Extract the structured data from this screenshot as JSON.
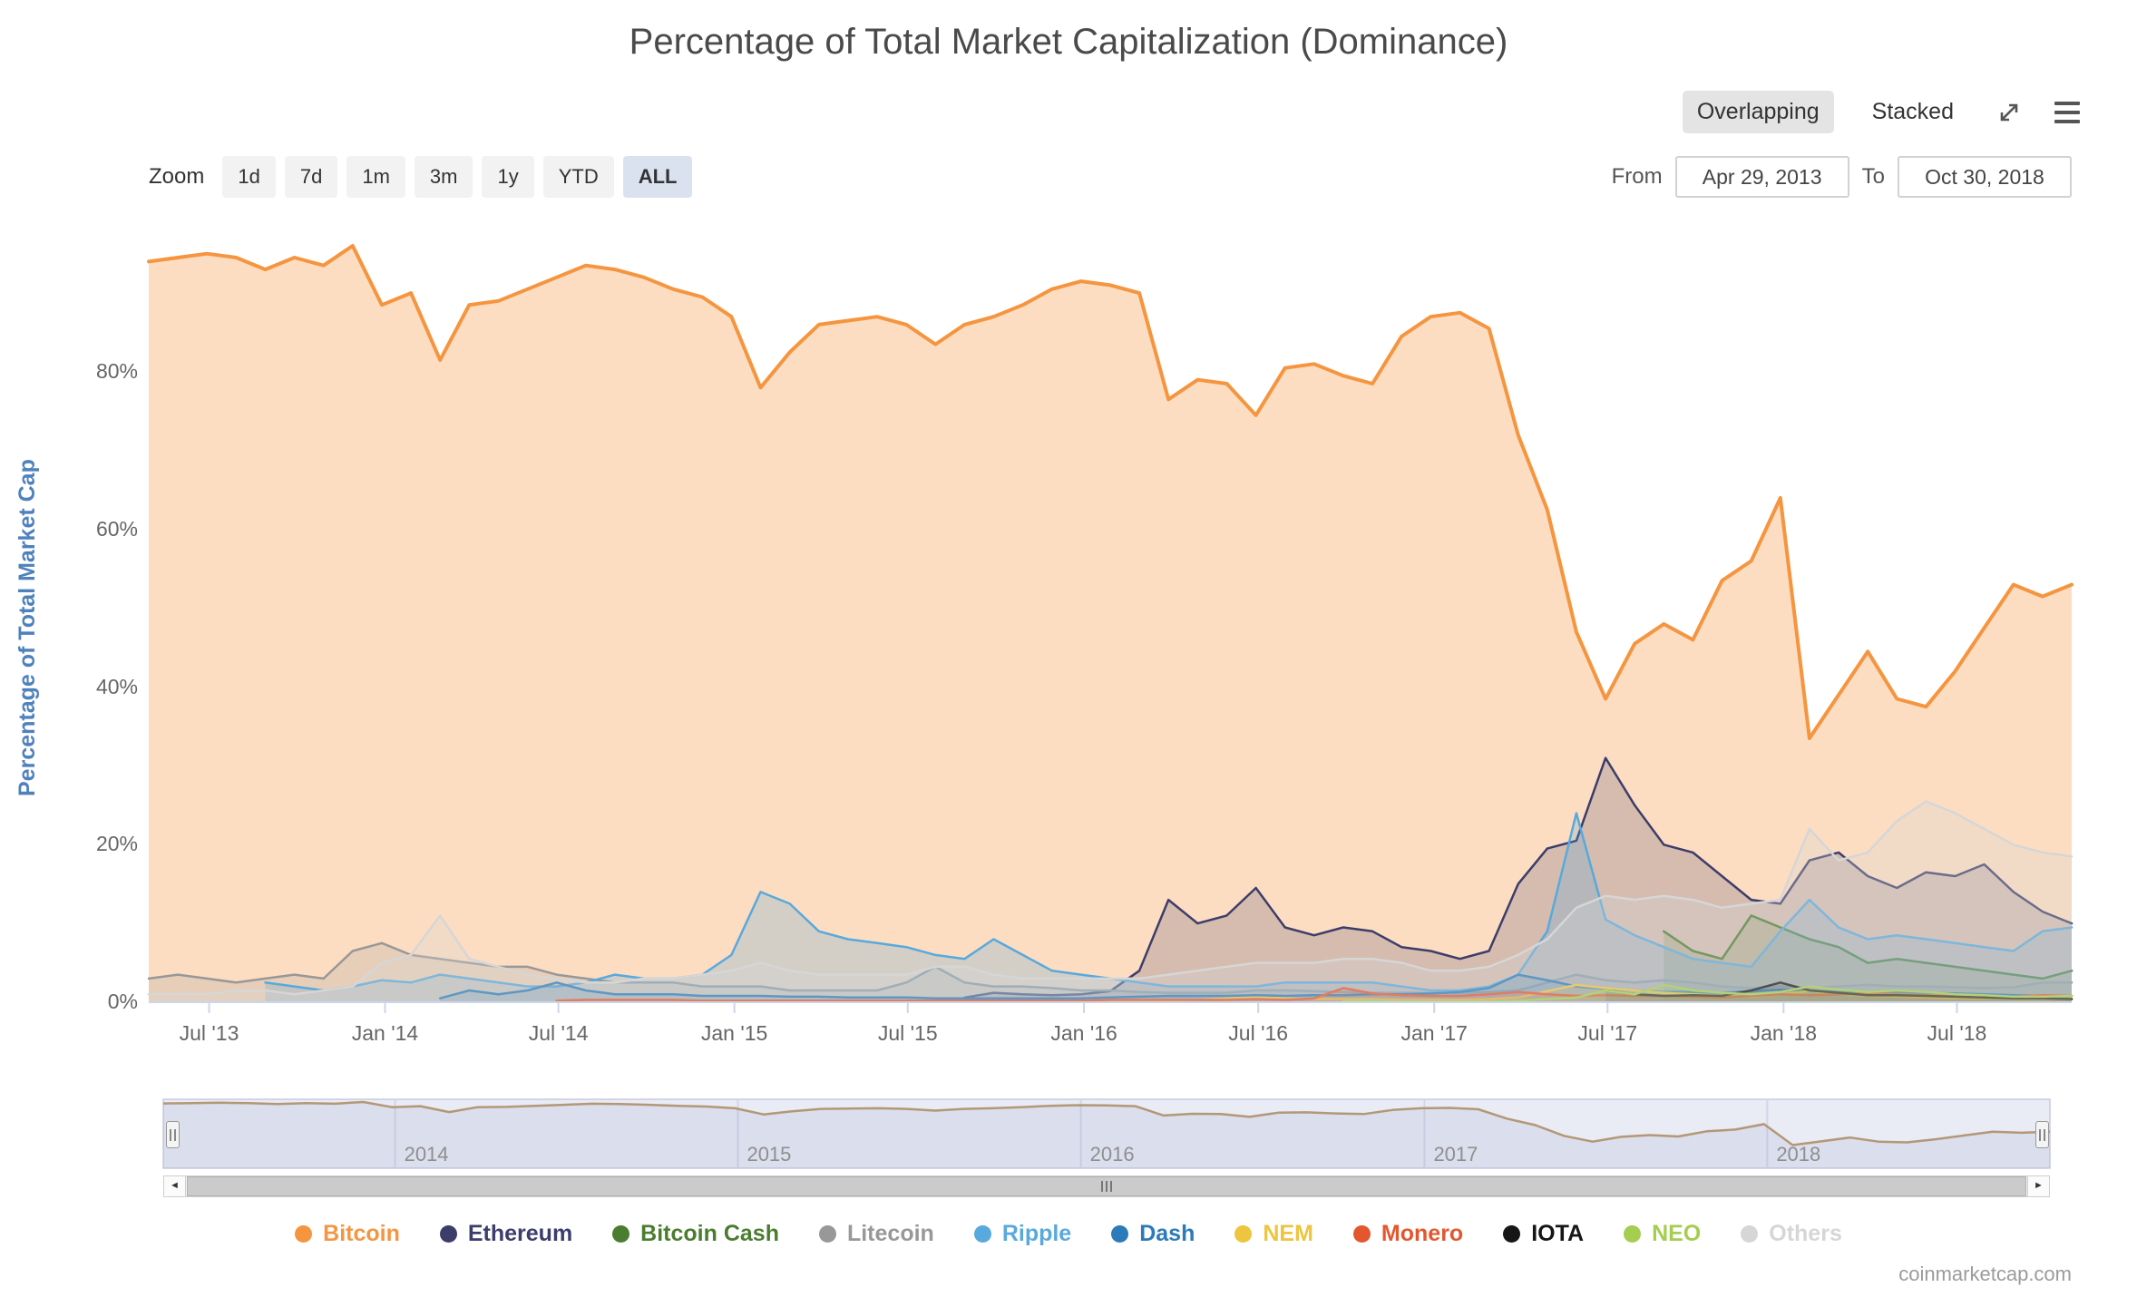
{
  "title": "Percentage of Total Market Capitalization (Dominance)",
  "toolbar": {
    "overlapping_label": "Overlapping",
    "stacked_label": "Stacked"
  },
  "range_selector": {
    "zoom_label": "Zoom",
    "buttons": [
      {
        "label": "1d",
        "selected": false
      },
      {
        "label": "7d",
        "selected": false
      },
      {
        "label": "1m",
        "selected": false
      },
      {
        "label": "3m",
        "selected": false
      },
      {
        "label": "1y",
        "selected": false
      },
      {
        "label": "YTD",
        "selected": false
      },
      {
        "label": "ALL",
        "selected": true
      }
    ],
    "from_label": "From",
    "from_value": "Apr 29, 2013",
    "to_label": "To",
    "to_value": "Oct 30, 2018"
  },
  "scrollbar": {
    "left_arrow": "◄",
    "right_arrow": "►"
  },
  "watermark": "coinmarketcap.com",
  "chart_data": {
    "type": "area",
    "title": "Percentage of Total Market Capitalization (Dominance)",
    "ylabel": "Percentage of Total Market Cap",
    "ylabel_color": "#4f81bd",
    "ylim": [
      0,
      100
    ],
    "grid": "off",
    "legend_position": "bottom",
    "x_range": {
      "from": "Apr 29, 2013",
      "to": "Oct 30, 2018"
    },
    "x_months_start": "2013-04",
    "x_months_total": 67,
    "yticks": [
      {
        "v": 0,
        "label": "0%"
      },
      {
        "v": 20,
        "label": "20%"
      },
      {
        "v": 40,
        "label": "40%"
      },
      {
        "v": 60,
        "label": "60%"
      },
      {
        "v": 80,
        "label": "80%"
      }
    ],
    "xticks": [
      {
        "label": "Jul '13",
        "t": 2.07
      },
      {
        "label": "Jan '14",
        "t": 8.11
      },
      {
        "label": "Jul '14",
        "t": 14.06
      },
      {
        "label": "Jan '15",
        "t": 20.1
      },
      {
        "label": "Jul '15",
        "t": 26.05
      },
      {
        "label": "Jan '16",
        "t": 32.1
      },
      {
        "label": "Jul '16",
        "t": 38.08
      },
      {
        "label": "Jan '17",
        "t": 44.12
      },
      {
        "label": "Jul '17",
        "t": 50.07
      },
      {
        "label": "Jan '18",
        "t": 56.11
      },
      {
        "label": "Jul '18",
        "t": 62.06
      }
    ],
    "navigator": {
      "line_color": "#b39877",
      "years": [
        {
          "label": "2014",
          "t": 8.11
        },
        {
          "label": "2015",
          "t": 20.1
        },
        {
          "label": "2016",
          "t": 32.1
        },
        {
          "label": "2017",
          "t": 44.12
        },
        {
          "label": "2018",
          "t": 56.11
        }
      ]
    },
    "series": [
      {
        "name": "Bitcoin",
        "color": "#f5953f",
        "fill_opacity": 0.32,
        "first_index": 0,
        "values": [
          94,
          94.5,
          95,
          94.5,
          93,
          94.5,
          93.5,
          96,
          88.5,
          90,
          81.5,
          88.5,
          89,
          90.5,
          92,
          93.5,
          93,
          92,
          90.5,
          89.5,
          87,
          78,
          82.5,
          86,
          86.5,
          87,
          86,
          83.5,
          86,
          87,
          88.5,
          90.5,
          91.5,
          91,
          90,
          76.5,
          79,
          78.5,
          74.5,
          80.5,
          81,
          79.5,
          78.5,
          84.5,
          87,
          87.5,
          85.5,
          72,
          62.5,
          47,
          38.5,
          45.5,
          48,
          46,
          53.5,
          56,
          64,
          33.5,
          39,
          44.5,
          38.5,
          37.5,
          42,
          47.5,
          53,
          51.5,
          53
        ]
      },
      {
        "name": "Ethereum",
        "color": "#3d3d6b",
        "fill_opacity": 0.2,
        "first_index": 28,
        "values": [
          0.6,
          1.2,
          1,
          0.9,
          1,
          1.4,
          4,
          13,
          10,
          11,
          14.5,
          9.5,
          8.5,
          9.5,
          9,
          7,
          6.5,
          5.5,
          6.5,
          15,
          19.5,
          20.5,
          31,
          25,
          20,
          19,
          16,
          13,
          12.5,
          18,
          19,
          16,
          14.5,
          16.5,
          16,
          17.5,
          14,
          11.5,
          10
        ]
      },
      {
        "name": "Bitcoin Cash",
        "color": "#4a7d2f",
        "fill_opacity": 0.2,
        "first_index": 52,
        "values": [
          9,
          6.5,
          5.5,
          11,
          9.5,
          8,
          7,
          5,
          5.5,
          5,
          4.5,
          4,
          3.5,
          3,
          4
        ]
      },
      {
        "name": "Litecoin",
        "color": "#989898",
        "fill_opacity": 0.2,
        "first_index": 0,
        "values": [
          3,
          3.5,
          3,
          2.5,
          3,
          3.5,
          3,
          6.5,
          7.5,
          6,
          5.5,
          5,
          4.5,
          4.5,
          3.5,
          3,
          2.5,
          2.5,
          2.5,
          2,
          2,
          2,
          1.5,
          1.5,
          1.5,
          1.5,
          2.5,
          4.5,
          2.5,
          2,
          2,
          1.8,
          1.5,
          1.5,
          1.3,
          1.2,
          1.2,
          1.2,
          1.5,
          1.5,
          1.4,
          1.3,
          1.2,
          1.2,
          1.2,
          1.2,
          1.3,
          1.5,
          2.5,
          3.5,
          2.8,
          2.5,
          2.8,
          2.5,
          2,
          1.8,
          2,
          1.8,
          2,
          2.2,
          2,
          2,
          1.9,
          1.8,
          1.9,
          2.5,
          2.5
        ]
      },
      {
        "name": "Ripple",
        "color": "#58a9dd",
        "fill_opacity": 0.25,
        "first_index": 4,
        "values": [
          2.5,
          2,
          1.5,
          2,
          2.8,
          2.5,
          3.5,
          3,
          2.5,
          2,
          2,
          2.5,
          3.5,
          3,
          3,
          3.5,
          6,
          14,
          12.5,
          9,
          8,
          7.5,
          7,
          6,
          5.5,
          8,
          6,
          4,
          3.5,
          3,
          2.5,
          2,
          2,
          2,
          2,
          2.5,
          2.5,
          2.5,
          2.5,
          2,
          1.5,
          1.5,
          2,
          3.5,
          9,
          24,
          10.5,
          8.5,
          7,
          5.5,
          5,
          4.5,
          9,
          13,
          9.5,
          8,
          8.5,
          8,
          7.5,
          7,
          6.5,
          9,
          9.5
        ]
      },
      {
        "name": "Dash",
        "color": "#2b7bba",
        "fill_opacity": 0.2,
        "first_index": 10,
        "values": [
          0.5,
          1.5,
          1,
          1.5,
          2.5,
          1.5,
          1,
          1,
          1,
          0.8,
          0.8,
          0.8,
          0.7,
          0.7,
          0.6,
          0.6,
          0.6,
          0.5,
          0.5,
          0.5,
          0.5,
          0.5,
          0.5,
          0.6,
          0.7,
          0.8,
          0.8,
          0.8,
          0.9,
          0.8,
          0.9,
          0.9,
          1,
          1,
          1.1,
          1.3,
          1.8,
          3.5,
          2.8,
          2,
          1.7,
          1.5,
          1.3,
          1.3,
          1.2,
          1.4,
          1.6,
          1.5,
          1.3,
          1.2,
          1.3,
          1.2,
          1.1,
          1,
          0.9,
          0.8,
          0.8
        ]
      },
      {
        "name": "NEM",
        "color": "#edc53f",
        "fill_opacity": 0.2,
        "first_index": 24,
        "values": [
          0.2,
          0.2,
          0.2,
          0.2,
          0.2,
          0.2,
          0.1,
          0.1,
          0.1,
          0.1,
          0.2,
          0.2,
          0.3,
          0.5,
          0.6,
          0.5,
          0.4,
          0.4,
          0.4,
          0.3,
          0.3,
          0.3,
          0.4,
          0.6,
          1.4,
          2.2,
          1.8,
          1.5,
          1.2,
          1,
          0.8,
          0.7,
          1,
          1.4,
          1,
          0.8,
          0.7,
          0.6,
          0.5,
          0.5,
          0.4,
          0.4,
          0.4
        ]
      },
      {
        "name": "Monero",
        "color": "#e4572e",
        "fill_opacity": 0.2,
        "first_index": 14,
        "values": [
          0.2,
          0.3,
          0.3,
          0.3,
          0.3,
          0.2,
          0.2,
          0.2,
          0.2,
          0.2,
          0.2,
          0.2,
          0.2,
          0.2,
          0.2,
          0.2,
          0.2,
          0.2,
          0.2,
          0.3,
          0.3,
          0.3,
          0.3,
          0.3,
          0.4,
          0.3,
          0.5,
          1.8,
          1.1,
          0.9,
          0.8,
          0.8,
          1,
          1.3,
          1,
          0.8,
          0.9,
          0.8,
          0.8,
          0.7,
          0.6,
          0.8,
          1,
          0.9,
          1,
          1.1,
          1,
          0.9,
          0.8,
          0.8,
          0.7,
          0.9,
          0.8
        ]
      },
      {
        "name": "IOTA",
        "color": "#161616",
        "fill_opacity": 0.15,
        "first_index": 50,
        "values": [
          1.5,
          1,
          0.8,
          0.9,
          0.8,
          1.5,
          2.5,
          1.5,
          1.2,
          0.9,
          0.9,
          0.8,
          0.7,
          0.6,
          0.5,
          0.5,
          0.4
        ]
      },
      {
        "name": "NEO",
        "color": "#a5cd50",
        "fill_opacity": 0.2,
        "first_index": 41,
        "values": [
          0.2,
          0.2,
          0.1,
          0.1,
          0.1,
          0.1,
          0.2,
          0.4,
          0.6,
          1.5,
          1,
          2.2,
          1.5,
          1.2,
          1,
          1.3,
          2,
          1.6,
          1.3,
          1.5,
          1.3,
          1,
          0.9,
          0.7,
          0.7,
          0.8
        ]
      },
      {
        "name": "Others",
        "color": "#d6d6d6",
        "fill_opacity": 0.3,
        "first_index": 0,
        "values": [
          1,
          1,
          1,
          1.5,
          1.5,
          1,
          1.5,
          2,
          5,
          6,
          11,
          5.5,
          4.5,
          3.5,
          3,
          2.5,
          2.5,
          3,
          3,
          3.5,
          4,
          5,
          4,
          3.5,
          3.5,
          3.5,
          3.5,
          4.5,
          4.5,
          3.5,
          3,
          3,
          3,
          3,
          3,
          3.5,
          4,
          4.5,
          5,
          5,
          5,
          5.5,
          5.5,
          5,
          4,
          4,
          4.5,
          6,
          8,
          12,
          13.5,
          13,
          13.5,
          13,
          12,
          12.5,
          13,
          22,
          18,
          19,
          23,
          25.5,
          24,
          22,
          20,
          19,
          18.5
        ]
      }
    ]
  }
}
